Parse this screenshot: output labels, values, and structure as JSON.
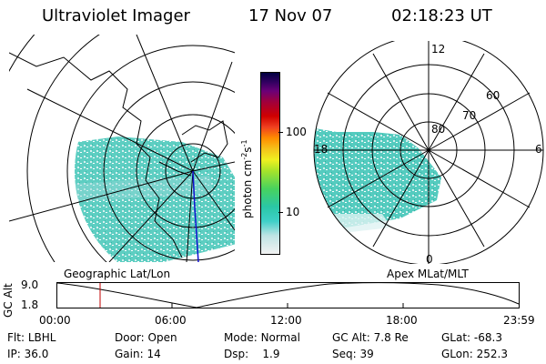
{
  "header": {
    "instrument": "Ultraviolet Imager",
    "date": "17 Nov 07",
    "time": "02:18:23 UT"
  },
  "left_map": {
    "label": "Geographic Lat/Lon"
  },
  "right_map": {
    "label": "Apex MLat/MLT",
    "lat_labels": [
      "80",
      "70",
      "60"
    ],
    "mlt_labels": [
      "12",
      "18",
      "6",
      "0"
    ]
  },
  "colorbar": {
    "unit_label": "photon cm",
    "unit_sup1": "-2",
    "unit_mid": "s",
    "unit_sup2": "-1",
    "ticks": [
      "100",
      "10"
    ],
    "scale": "log",
    "colors": [
      "#f2f2f2",
      "#bfe4e4",
      "#3fd0c8",
      "#2ac7a6",
      "#48d25e",
      "#a8e42a",
      "#f0f020",
      "#f5c21a",
      "#ff8c00",
      "#f04020",
      "#d00000",
      "#a0003c",
      "#6a0078",
      "#300060",
      "#000040"
    ]
  },
  "altitude_plot": {
    "ylabel": "GC Alt",
    "yticks": [
      "9.0",
      "1.8"
    ],
    "xticks": [
      "00:00",
      "06:00",
      "12:00",
      "18:00",
      "23:59"
    ],
    "current_time_marker": "02:18",
    "marker_color": "#c00000"
  },
  "info_table": {
    "row1": [
      {
        "key": "Flt:",
        "value": "LBHL"
      },
      {
        "key": "Door:",
        "value": "Open"
      },
      {
        "key": "Mode:",
        "value": "Normal"
      },
      {
        "key": "GC Alt:",
        "value": "7.8 Re"
      },
      {
        "key": "GLat:",
        "value": "-68.3"
      }
    ],
    "row2": [
      {
        "key": "IP:",
        "value": "36.0"
      },
      {
        "key": "Gain:",
        "value": "14"
      },
      {
        "key": "Dsp:",
        "value": "1.9"
      },
      {
        "key": "Seq:",
        "value": "39"
      },
      {
        "key": "GLon:",
        "value": "252.3"
      }
    ]
  }
}
